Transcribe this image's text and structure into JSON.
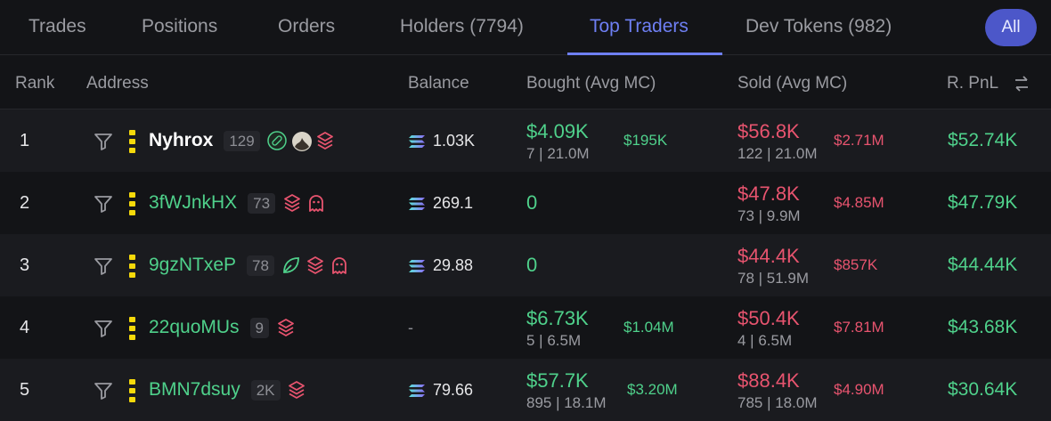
{
  "tabs": {
    "items": [
      "Trades",
      "Positions",
      "Orders",
      "Holders (7794)",
      "Top Traders",
      "Dev Tokens (982)"
    ],
    "active": "Top Traders",
    "filter_button": "All"
  },
  "table": {
    "columns": [
      "Rank",
      "Address",
      "Balance",
      "Bought (Avg MC)",
      "Sold (Avg MC)",
      "R. PnL"
    ],
    "rows": [
      {
        "rank": "1",
        "address": "Nyhrox",
        "count": "129",
        "balance": "1.03K",
        "bought": "$4.09K",
        "bought_detail": "7 | 21.0M",
        "bought_avg_mc": "$195K",
        "sold": "$56.8K",
        "sold_detail": "122 | 21.0M",
        "sold_avg_mc": "$2.71M",
        "realized_pnl": "$52.74K"
      },
      {
        "rank": "2",
        "address": "3fWJnkHX",
        "count": "73",
        "balance": "269.1",
        "bought": "0",
        "sold": "$47.8K",
        "sold_detail": "73 | 9.9M",
        "sold_avg_mc": "$4.85M",
        "realized_pnl": "$47.79K"
      },
      {
        "rank": "3",
        "address": "9gzNTxeP",
        "count": "78",
        "balance": "29.88",
        "bought": "0",
        "sold": "$44.4K",
        "sold_detail": "78 | 51.9M",
        "sold_avg_mc": "$857K",
        "realized_pnl": "$44.44K"
      },
      {
        "rank": "4",
        "address": "22quoMUs",
        "count": "9",
        "balance": "-",
        "bought": "$6.73K",
        "bought_detail": "5 | 6.5M",
        "bought_avg_mc": "$1.04M",
        "sold": "$50.4K",
        "sold_detail": "4 | 6.5M",
        "sold_avg_mc": "$7.81M",
        "realized_pnl": "$43.68K"
      },
      {
        "rank": "5",
        "address": "BMN7dsuy",
        "count": "2K",
        "balance": "79.66",
        "bought": "$57.7K",
        "bought_detail": "895 | 18.1M",
        "bought_avg_mc": "$3.20M",
        "sold": "$88.4K",
        "sold_detail": "785 | 18.0M",
        "sold_avg_mc": "$4.90M",
        "realized_pnl": "$30.64K"
      }
    ]
  }
}
